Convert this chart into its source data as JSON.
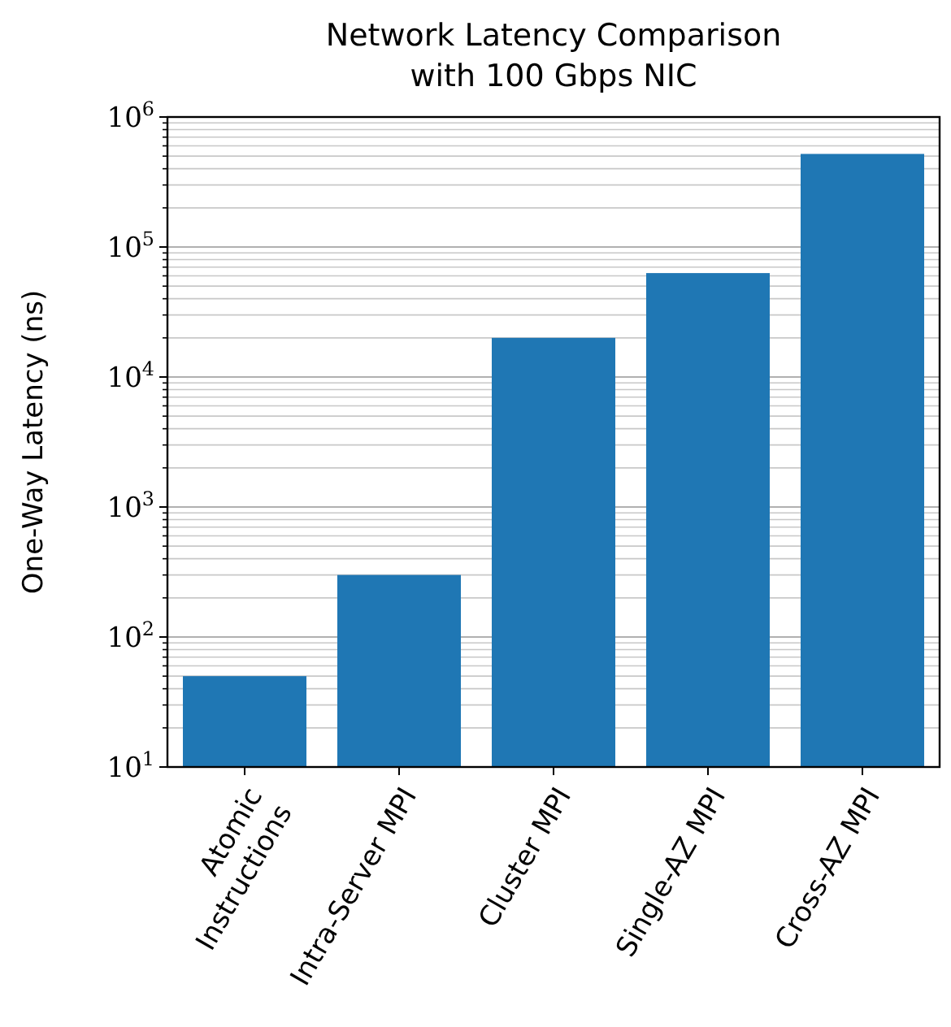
{
  "chart_data": {
    "type": "bar",
    "title": "Network Latency Comparison",
    "subtitle": "with 100 Gbps NIC",
    "ylabel": "One-Way Latency (ns)",
    "categories": [
      "Atomic\nInstructions",
      "Intra-Server MPI",
      "Cluster MPI",
      "Single-AZ MPI",
      "Cross-AZ MPI"
    ],
    "values": [
      50,
      300,
      20000,
      63000,
      520000
    ],
    "color": "#1f77b4",
    "log": true,
    "ylim": [
      10,
      1000000
    ],
    "yticks": [
      {
        "value": 10,
        "label": "10$^{1}$"
      },
      {
        "value": 100,
        "label": "10$^{2}$"
      },
      {
        "value": 1000,
        "label": "10$^{3}$"
      },
      {
        "value": 10000,
        "label": "10$^{4}$"
      },
      {
        "value": 100000,
        "label": "10$^{5}$"
      },
      {
        "value": 1000000,
        "label": "10$^{6}$"
      }
    ],
    "grid": "y"
  }
}
